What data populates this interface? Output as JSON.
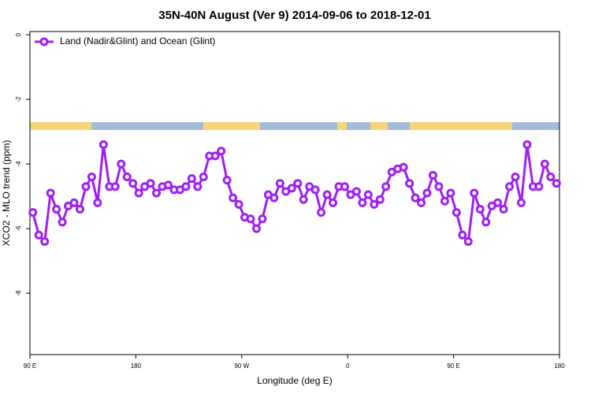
{
  "chart_data": {
    "type": "line",
    "title": "35N-40N August (Ver 9)   2014-09-06 to 2018-12-01",
    "x_label": "Longitude (deg E)",
    "y_label": "XCO2 - MLO trend (ppm)",
    "xlim": [
      90,
      540
    ],
    "xticks": [
      {
        "value": 90,
        "label": "90 E"
      },
      180,
      {
        "value": 270,
        "label": "90 W"
      },
      {
        "value": 360,
        "label": "0"
      },
      {
        "value": 450,
        "label": "90 E"
      },
      {
        "value": 540,
        "label": "180"
      }
    ],
    "ylim": [
      -9.9,
      0.1
    ],
    "yticks": [
      0,
      -2,
      -4,
      -6,
      -8
    ],
    "legend": "upper left",
    "grid": false,
    "x": [
      92.5,
      97.5,
      102.5,
      107.5,
      112.5,
      117.5,
      122.5,
      127.5,
      132.5,
      137.5,
      142.5,
      147.5,
      152.5,
      157.5,
      162.5,
      167.5,
      172.5,
      177.5,
      182.5,
      187.5,
      192.5,
      197.5,
      202.5,
      207.5,
      212.5,
      217.5,
      222.5,
      227.5,
      232.5,
      237.5,
      242.5,
      247.5,
      252.5,
      257.5,
      262.5,
      267.5,
      272.5,
      277.5,
      282.5,
      287.5,
      292.5,
      297.5,
      302.5,
      307.5,
      312.5,
      317.5,
      322.5,
      327.5,
      332.5,
      337.5,
      342.5,
      347.5,
      352.5,
      357.5,
      362.5,
      367.5,
      372.5,
      377.5,
      382.5,
      387.5,
      392.5,
      397.5,
      402.5,
      407.5,
      412.5,
      417.5,
      422.5,
      427.5,
      432.5,
      437.5,
      442.5,
      447.5,
      452.5,
      457.5,
      462.5,
      467.5,
      472.5,
      477.5,
      482.5,
      487.5,
      492.5,
      497.5,
      502.5,
      507.5,
      512.5,
      517.5,
      522.5,
      527.5,
      532.5,
      537.5
    ],
    "series": [
      {
        "name": "Land (Nadir&Glint) and Ocean (Glint)",
        "color": "#a020f0",
        "values": [
          -5.5,
          -6.2,
          -6.4,
          -4.9,
          -5.4,
          -5.8,
          -5.3,
          -5.2,
          -5.4,
          -4.7,
          -4.4,
          -5.2,
          -3.4,
          -4.7,
          -4.7,
          -4.0,
          -4.4,
          -4.6,
          -4.9,
          -4.7,
          -4.6,
          -4.9,
          -4.7,
          -4.65,
          -4.8,
          -4.8,
          -4.7,
          -4.45,
          -4.7,
          -4.4,
          -3.75,
          -3.75,
          -3.6,
          -4.5,
          -5.05,
          -5.25,
          -5.65,
          -5.7,
          -6.0,
          -5.7,
          -4.95,
          -5.05,
          -4.6,
          -4.85,
          -4.75,
          -4.6,
          -5.1,
          -4.7,
          -4.8,
          -5.5,
          -4.95,
          -5.2,
          -4.7,
          -4.7,
          -4.95,
          -4.85,
          -5.2,
          -4.95,
          -5.25,
          -5.1,
          -4.7,
          -4.25,
          -4.15,
          -4.1,
          -4.6,
          -5.05,
          -5.2,
          -4.9,
          -4.35,
          -4.7,
          -5.15,
          -4.9,
          -5.5,
          -6.2,
          -6.4,
          -4.9,
          -5.4,
          -5.8,
          -5.3,
          -5.2,
          -5.4,
          -4.7,
          -4.4,
          -5.2,
          -3.4,
          -4.7,
          -4.7,
          -4.0,
          -4.4,
          -4.6
        ]
      }
    ]
  }
}
